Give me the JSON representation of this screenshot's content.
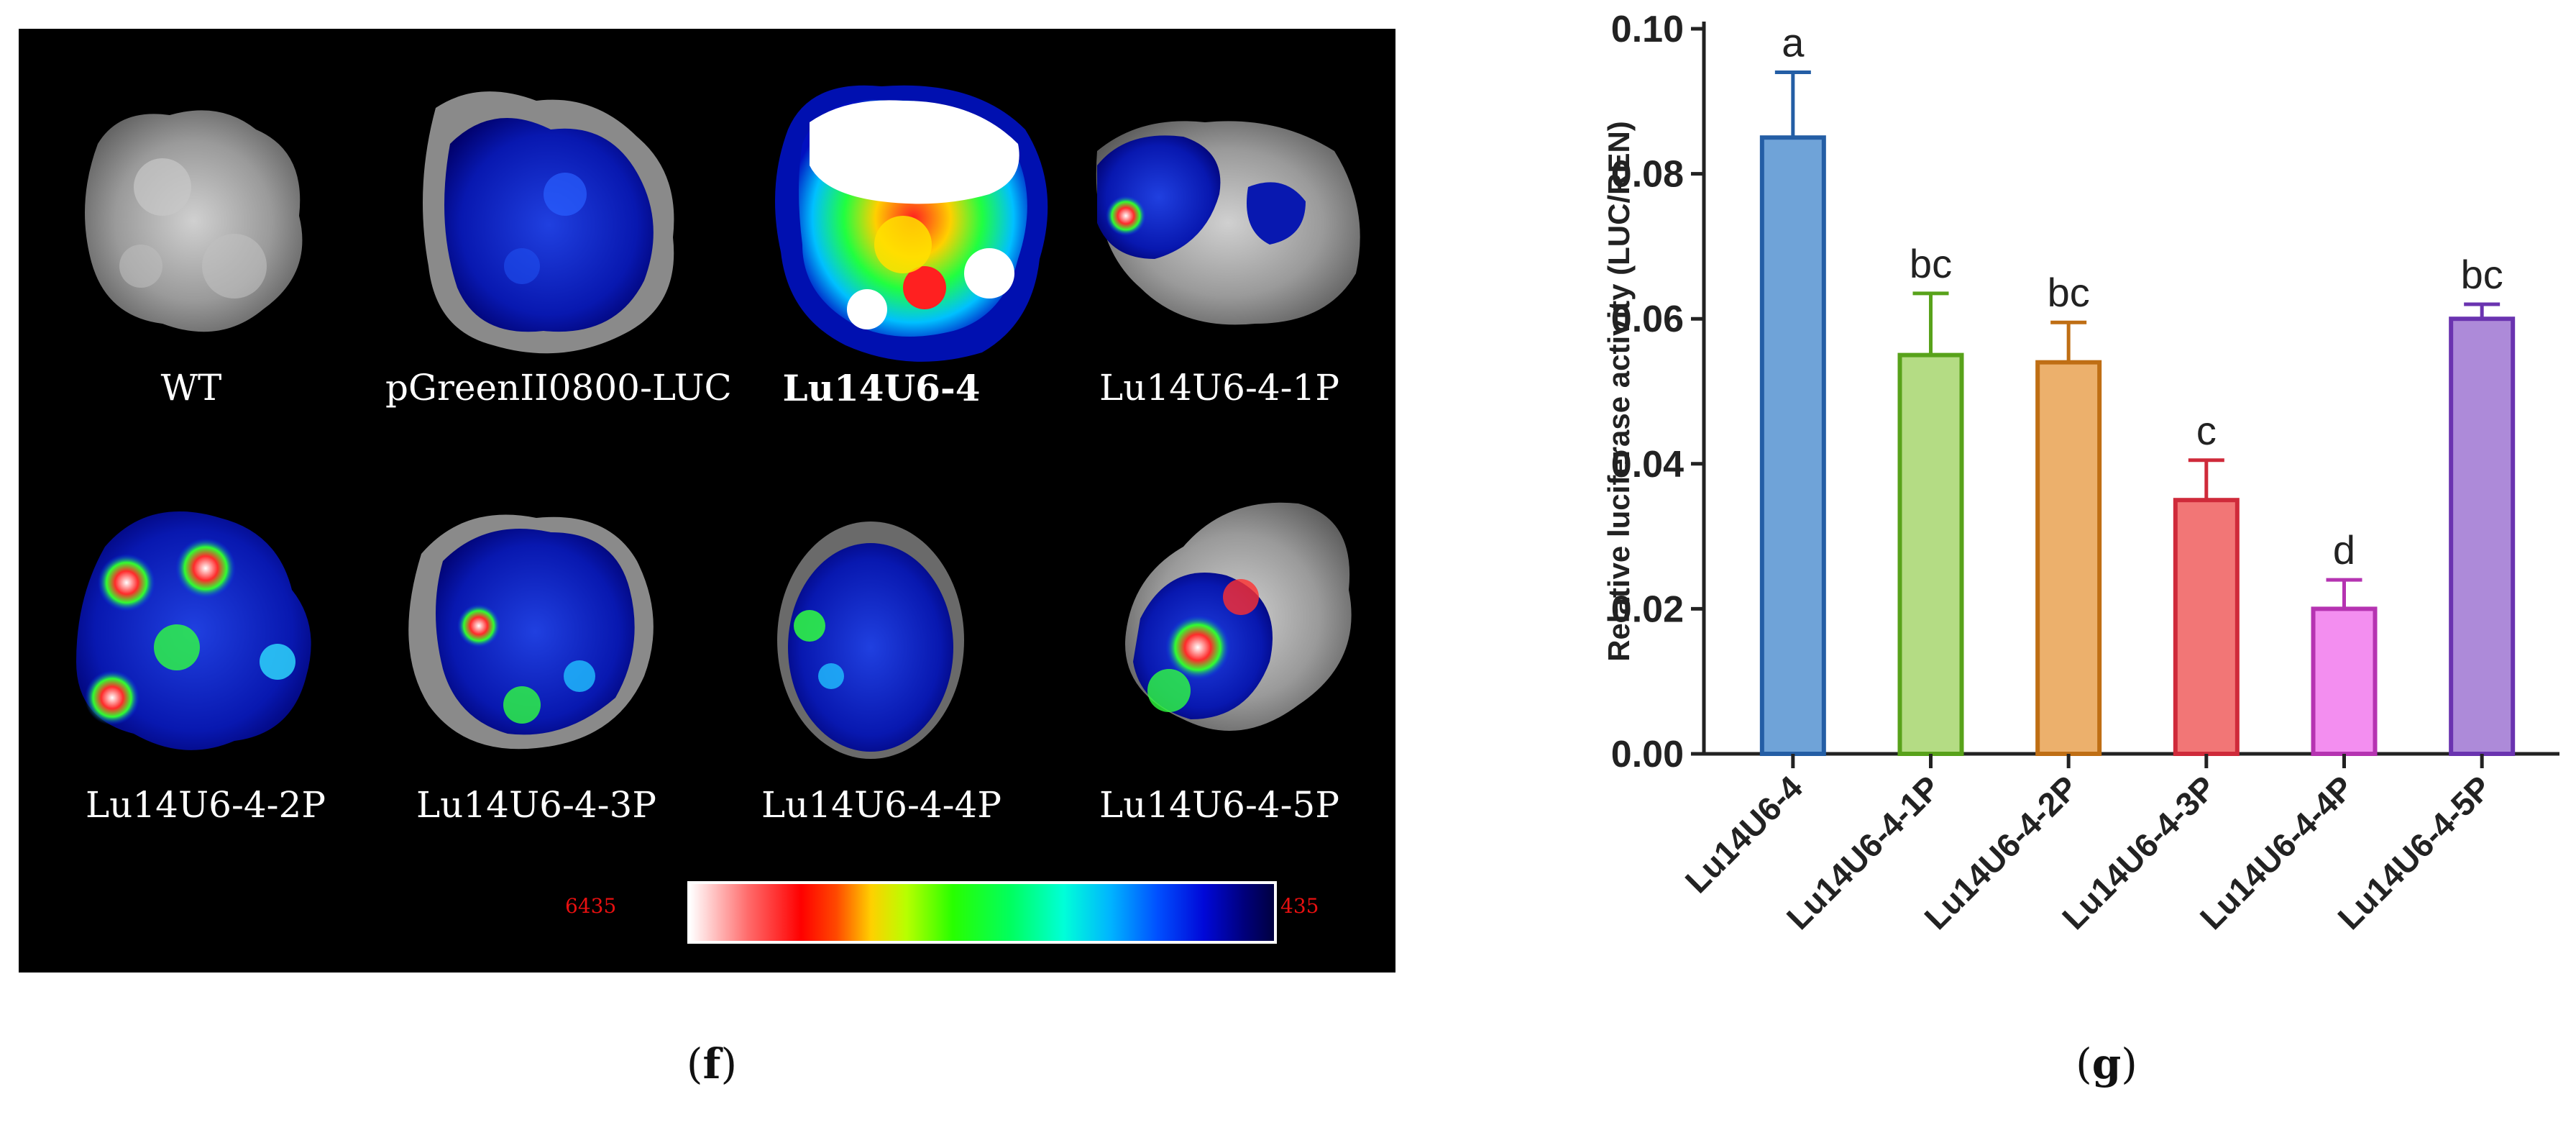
{
  "panel_f": {
    "letter": "f",
    "samples": [
      {
        "label": "WT",
        "bold": false
      },
      {
        "label": "pGreenII0800-LUC",
        "bold": false
      },
      {
        "label": "Lu14U6-4",
        "bold": true
      },
      {
        "label": "Lu14U6-4-1P",
        "bold": false
      },
      {
        "label": "Lu14U6-4-2P",
        "bold": false
      },
      {
        "label": "Lu14U6-4-3P",
        "bold": false
      },
      {
        "label": "Lu14U6-4-4P",
        "bold": false
      },
      {
        "label": "Lu14U6-4-5P",
        "bold": false
      }
    ],
    "colorbar": {
      "max_label": "6435",
      "min_label": "435"
    }
  },
  "panel_g": {
    "letter": "g"
  },
  "chart_data": {
    "type": "bar",
    "title": "",
    "ylabel": "Relative luciferase activity (LUC/REN)",
    "xlabel": "",
    "categories": [
      "Lu14U6-4",
      "Lu14U6-4-1P",
      "Lu14U6-4-2P",
      "Lu14U6-4-3P",
      "Lu14U6-4-4P",
      "Lu14U6-4-5P"
    ],
    "values": [
      0.085,
      0.055,
      0.054,
      0.035,
      0.02,
      0.06
    ],
    "errors": [
      0.009,
      0.0085,
      0.0055,
      0.0055,
      0.004,
      0.002
    ],
    "significance": [
      "a",
      "bc",
      "bc",
      "c",
      "d",
      "bc"
    ],
    "ylim": [
      0,
      0.1
    ],
    "yticks": [
      "0.00",
      "0.02",
      "0.04",
      "0.06",
      "0.08",
      "0.10"
    ],
    "grid": false,
    "colors": {
      "fill": [
        "#6fa3d8",
        "#b4dc84",
        "#ecb06c",
        "#f27676",
        "#f38ef0",
        "#ad8ad9"
      ],
      "stroke": [
        "#245ea5",
        "#58a21a",
        "#bf6e14",
        "#cf2a3a",
        "#b533b1",
        "#6a33b0"
      ]
    }
  }
}
